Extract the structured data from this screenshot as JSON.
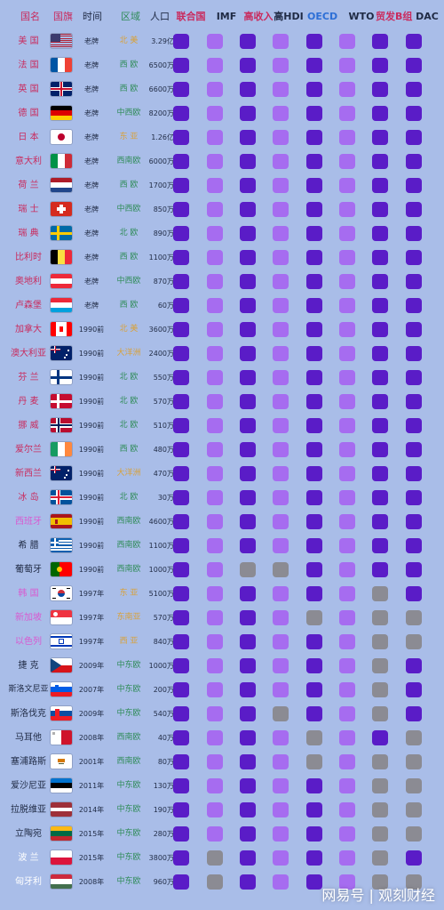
{
  "headers": [
    {
      "label": "国名",
      "color": "#c92b5e"
    },
    {
      "label": "国旗",
      "color": "#c92b5e"
    },
    {
      "label": "时间",
      "color": "#1f2a44"
    },
    {
      "label": "区域",
      "color": "#2e8b57"
    },
    {
      "label": "人口",
      "color": "#1f2a44"
    },
    {
      "label": "联合国",
      "color": "#c92b5e"
    },
    {
      "label": "IMF",
      "color": "#1f2a44"
    },
    {
      "label": "高收入",
      "color": "#c92b5e"
    },
    {
      "label": "高HDI",
      "color": "#1f2a44"
    },
    {
      "label": "OECD",
      "color": "#2d6fd6"
    },
    {
      "label": "WTO",
      "color": "#1f2a44"
    },
    {
      "label": "贸发B组",
      "color": "#c92b5e"
    },
    {
      "label": "DAC",
      "color": "#1f2a44"
    }
  ],
  "legend": {
    "dark": "#5a1cc7",
    "light": "#a66cf0",
    "gray": "#8b8b93"
  },
  "rows": [
    {
      "name": "美 国",
      "name_color": "#c92b5e",
      "flag": "flag-usa-icon",
      "time": "老牌",
      "region": "北 美",
      "region_color": "#d8a13a",
      "population": "3.29亿",
      "cells": [
        "d",
        "l",
        "d",
        "l",
        "d",
        "l",
        "d",
        "d"
      ]
    },
    {
      "name": "法 国",
      "name_color": "#c92b5e",
      "flag": "flag-france-icon",
      "time": "老牌",
      "region": "西 欧",
      "region_color": "#2e8b57",
      "population": "6500万",
      "cells": [
        "d",
        "l",
        "d",
        "l",
        "d",
        "l",
        "d",
        "d"
      ]
    },
    {
      "name": "英 国",
      "name_color": "#c92b5e",
      "flag": "flag-uk-icon",
      "time": "老牌",
      "region": "西 欧",
      "region_color": "#2e8b57",
      "population": "6600万",
      "cells": [
        "d",
        "l",
        "d",
        "l",
        "d",
        "l",
        "d",
        "d"
      ]
    },
    {
      "name": "德 国",
      "name_color": "#c92b5e",
      "flag": "flag-germany-icon",
      "time": "老牌",
      "region": "中西欧",
      "region_color": "#2e8b57",
      "population": "8200万",
      "cells": [
        "d",
        "l",
        "d",
        "l",
        "d",
        "l",
        "d",
        "d"
      ]
    },
    {
      "name": "日 本",
      "name_color": "#c92b5e",
      "flag": "flag-japan-icon",
      "time": "老牌",
      "region": "东 亚",
      "region_color": "#d8a13a",
      "population": "1.26亿",
      "cells": [
        "d",
        "l",
        "d",
        "l",
        "d",
        "l",
        "d",
        "d"
      ]
    },
    {
      "name": "意大利",
      "name_color": "#c92b5e",
      "flag": "flag-italy-icon",
      "time": "老牌",
      "region": "西南欧",
      "region_color": "#2e8b57",
      "population": "6000万",
      "cells": [
        "d",
        "l",
        "d",
        "l",
        "d",
        "l",
        "d",
        "d"
      ]
    },
    {
      "name": "荷 兰",
      "name_color": "#c92b5e",
      "flag": "flag-netherlands-icon",
      "time": "老牌",
      "region": "西 欧",
      "region_color": "#2e8b57",
      "population": "1700万",
      "cells": [
        "d",
        "l",
        "d",
        "l",
        "d",
        "l",
        "d",
        "d"
      ]
    },
    {
      "name": "瑞 士",
      "name_color": "#c92b5e",
      "flag": "flag-switzerland-icon",
      "time": "老牌",
      "region": "中西欧",
      "region_color": "#2e8b57",
      "population": "850万",
      "cells": [
        "d",
        "l",
        "d",
        "l",
        "d",
        "l",
        "d",
        "d"
      ]
    },
    {
      "name": "瑞 典",
      "name_color": "#c92b5e",
      "flag": "flag-sweden-icon",
      "time": "老牌",
      "region": "北 欧",
      "region_color": "#2e8b57",
      "population": "890万",
      "cells": [
        "d",
        "l",
        "d",
        "l",
        "d",
        "l",
        "d",
        "d"
      ]
    },
    {
      "name": "比利时",
      "name_color": "#c92b5e",
      "flag": "flag-belgium-icon",
      "time": "老牌",
      "region": "西 欧",
      "region_color": "#2e8b57",
      "population": "1100万",
      "cells": [
        "d",
        "l",
        "d",
        "l",
        "d",
        "l",
        "d",
        "d"
      ]
    },
    {
      "name": "奥地利",
      "name_color": "#c92b5e",
      "flag": "flag-austria-icon",
      "time": "老牌",
      "region": "中西欧",
      "region_color": "#2e8b57",
      "population": "870万",
      "cells": [
        "d",
        "l",
        "d",
        "l",
        "d",
        "l",
        "d",
        "d"
      ]
    },
    {
      "name": "卢森堡",
      "name_color": "#c92b5e",
      "flag": "flag-luxembourg-icon",
      "time": "老牌",
      "region": "西 欧",
      "region_color": "#2e8b57",
      "population": "60万",
      "cells": [
        "d",
        "l",
        "d",
        "l",
        "d",
        "l",
        "d",
        "d"
      ]
    },
    {
      "name": "加拿大",
      "name_color": "#c92b5e",
      "flag": "flag-canada-icon",
      "time": "1990前",
      "region": "北 美",
      "region_color": "#d8a13a",
      "population": "3600万",
      "cells": [
        "d",
        "l",
        "d",
        "l",
        "d",
        "l",
        "d",
        "d"
      ]
    },
    {
      "name": "澳大利亚",
      "name_color": "#c92b5e",
      "flag": "flag-australia-icon",
      "time": "1990前",
      "region": "大洋洲",
      "region_color": "#d8a13a",
      "population": "2400万",
      "cells": [
        "d",
        "l",
        "d",
        "l",
        "d",
        "l",
        "d",
        "d"
      ]
    },
    {
      "name": "芬 兰",
      "name_color": "#c92b5e",
      "flag": "flag-finland-icon",
      "time": "1990前",
      "region": "北 欧",
      "region_color": "#2e8b57",
      "population": "550万",
      "cells": [
        "d",
        "l",
        "d",
        "l",
        "d",
        "l",
        "d",
        "d"
      ]
    },
    {
      "name": "丹 麦",
      "name_color": "#c92b5e",
      "flag": "flag-denmark-icon",
      "time": "1990前",
      "region": "北 欧",
      "region_color": "#2e8b57",
      "population": "570万",
      "cells": [
        "d",
        "l",
        "d",
        "l",
        "d",
        "l",
        "d",
        "d"
      ]
    },
    {
      "name": "挪 威",
      "name_color": "#c92b5e",
      "flag": "flag-norway-icon",
      "time": "1990前",
      "region": "北 欧",
      "region_color": "#2e8b57",
      "population": "510万",
      "cells": [
        "d",
        "l",
        "d",
        "l",
        "d",
        "l",
        "d",
        "d"
      ]
    },
    {
      "name": "爱尔兰",
      "name_color": "#c92b5e",
      "flag": "flag-ireland-icon",
      "time": "1990前",
      "region": "西 欧",
      "region_color": "#2e8b57",
      "population": "480万",
      "cells": [
        "d",
        "l",
        "d",
        "l",
        "d",
        "l",
        "d",
        "d"
      ]
    },
    {
      "name": "新西兰",
      "name_color": "#c92b5e",
      "flag": "flag-new-zealand-icon",
      "time": "1990前",
      "region": "大洋洲",
      "region_color": "#d8a13a",
      "population": "470万",
      "cells": [
        "d",
        "l",
        "d",
        "l",
        "d",
        "l",
        "d",
        "d"
      ]
    },
    {
      "name": "冰 岛",
      "name_color": "#c92b5e",
      "flag": "flag-iceland-icon",
      "time": "1990前",
      "region": "北 欧",
      "region_color": "#2e8b57",
      "population": "30万",
      "cells": [
        "d",
        "l",
        "d",
        "l",
        "d",
        "l",
        "d",
        "d"
      ]
    },
    {
      "name": "西班牙",
      "name_color": "#d85ad0",
      "flag": "flag-spain-icon",
      "time": "1990前",
      "region": "西南欧",
      "region_color": "#2e8b57",
      "population": "4600万",
      "cells": [
        "d",
        "l",
        "d",
        "l",
        "d",
        "l",
        "d",
        "d"
      ]
    },
    {
      "name": "希 腊",
      "name_color": "#1f2a44",
      "flag": "flag-greece-icon",
      "time": "1990前",
      "region": "西南欧",
      "region_color": "#2e8b57",
      "population": "1100万",
      "cells": [
        "d",
        "l",
        "d",
        "l",
        "d",
        "l",
        "d",
        "d"
      ]
    },
    {
      "name": "葡萄牙",
      "name_color": "#1f2a44",
      "flag": "flag-portugal-icon",
      "time": "1990前",
      "region": "西南欧",
      "region_color": "#2e8b57",
      "population": "1000万",
      "cells": [
        "d",
        "l",
        "g",
        "g",
        "d",
        "l",
        "d",
        "d"
      ]
    },
    {
      "name": "韩 国",
      "name_color": "#d85ad0",
      "flag": "flag-south-korea-icon",
      "time": "1997年",
      "region": "东 亚",
      "region_color": "#d8a13a",
      "population": "5100万",
      "cells": [
        "d",
        "l",
        "d",
        "l",
        "d",
        "l",
        "g",
        "d"
      ]
    },
    {
      "name": "新加坡",
      "name_color": "#d85ad0",
      "flag": "flag-singapore-icon",
      "time": "1997年",
      "region": "东南亚",
      "region_color": "#d8a13a",
      "population": "570万",
      "cells": [
        "d",
        "l",
        "d",
        "l",
        "g",
        "l",
        "g",
        "g"
      ]
    },
    {
      "name": "以色列",
      "name_color": "#d85ad0",
      "flag": "flag-israel-icon",
      "time": "1997年",
      "region": "西 亚",
      "region_color": "#d8a13a",
      "population": "840万",
      "cells": [
        "d",
        "l",
        "d",
        "l",
        "d",
        "l",
        "g",
        "g"
      ]
    },
    {
      "name": "捷 克",
      "name_color": "#1f2a44",
      "flag": "flag-czech-icon",
      "time": "2009年",
      "region": "中东欧",
      "region_color": "#2e8b57",
      "population": "1000万",
      "cells": [
        "d",
        "l",
        "d",
        "l",
        "d",
        "l",
        "g",
        "d"
      ]
    },
    {
      "name": "斯洛文尼亚",
      "name_color": "#1f2a44",
      "flag": "flag-slovenia-icon",
      "time": "2007年",
      "region": "中东欧",
      "region_color": "#2e8b57",
      "population": "200万",
      "cells": [
        "d",
        "l",
        "d",
        "l",
        "d",
        "l",
        "g",
        "d"
      ]
    },
    {
      "name": "斯洛伐克",
      "name_color": "#1f2a44",
      "flag": "flag-slovakia-icon",
      "time": "2009年",
      "region": "中东欧",
      "region_color": "#2e8b57",
      "population": "540万",
      "cells": [
        "d",
        "l",
        "d",
        "g",
        "d",
        "l",
        "g",
        "d"
      ]
    },
    {
      "name": "马耳他",
      "name_color": "#1f2a44",
      "flag": "flag-malta-icon",
      "time": "2008年",
      "region": "西南欧",
      "region_color": "#2e8b57",
      "population": "40万",
      "cells": [
        "d",
        "l",
        "d",
        "l",
        "g",
        "l",
        "d",
        "g"
      ]
    },
    {
      "name": "塞浦路斯",
      "name_color": "#1f2a44",
      "flag": "flag-cyprus-icon",
      "time": "2001年",
      "region": "西南欧",
      "region_color": "#2e8b57",
      "population": "80万",
      "cells": [
        "d",
        "l",
        "d",
        "l",
        "g",
        "l",
        "g",
        "g"
      ]
    },
    {
      "name": "爱沙尼亚",
      "name_color": "#1f2a44",
      "flag": "flag-estonia-icon",
      "time": "2011年",
      "region": "中东欧",
      "region_color": "#2e8b57",
      "population": "130万",
      "cells": [
        "d",
        "l",
        "d",
        "l",
        "d",
        "l",
        "g",
        "g"
      ]
    },
    {
      "name": "拉脱维亚",
      "name_color": "#1f2a44",
      "flag": "flag-latvia-icon",
      "time": "2014年",
      "region": "中东欧",
      "region_color": "#2e8b57",
      "population": "190万",
      "cells": [
        "d",
        "l",
        "d",
        "l",
        "d",
        "l",
        "g",
        "g"
      ]
    },
    {
      "name": "立陶宛",
      "name_color": "#1f2a44",
      "flag": "flag-lithuania-icon",
      "time": "2015年",
      "region": "中东欧",
      "region_color": "#2e8b57",
      "population": "280万",
      "cells": [
        "d",
        "l",
        "d",
        "l",
        "d",
        "l",
        "g",
        "g"
      ]
    },
    {
      "name": "波 兰",
      "name_color": "#ffffff",
      "flag": "flag-poland-icon",
      "time": "2015年",
      "region": "中东欧",
      "region_color": "#2e8b57",
      "population": "3800万",
      "cells": [
        "d",
        "g",
        "d",
        "l",
        "d",
        "l",
        "g",
        "d"
      ]
    },
    {
      "name": "匈牙利",
      "name_color": "#ffffff",
      "flag": "flag-hungary-icon",
      "time": "2008年",
      "region": "中东欧",
      "region_color": "#2e8b57",
      "population": "960万",
      "cells": [
        "d",
        "g",
        "d",
        "l",
        "d",
        "l",
        "g",
        "g"
      ]
    }
  ],
  "watermark": "网易号 | 观刻财经"
}
